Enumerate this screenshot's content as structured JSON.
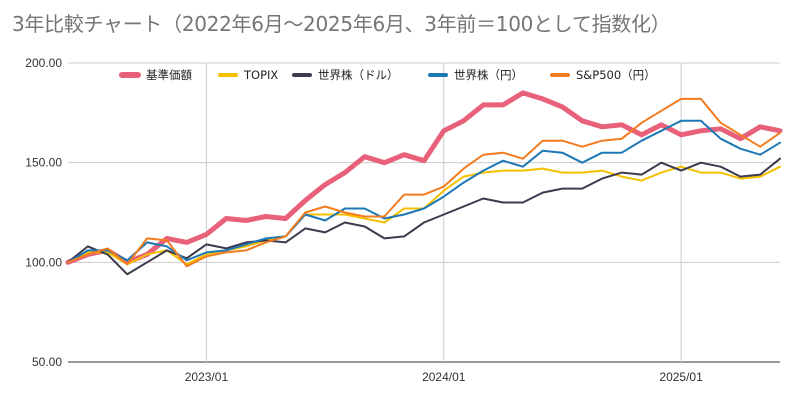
{
  "chart_data": {
    "type": "line",
    "title": "3年比較チャート（2022年6月～2025年6月、3年前＝100として指数化）",
    "xlabel": "",
    "ylabel": "",
    "ylim": [
      50,
      200
    ],
    "y_ticks": [
      "50.00",
      "100.00",
      "150.00",
      "200.00"
    ],
    "x_tick_labels": [
      "2023/01",
      "2024/01",
      "2025/01"
    ],
    "x": [
      "2022/06",
      "2022/07",
      "2022/08",
      "2022/09",
      "2022/10",
      "2022/11",
      "2022/12",
      "2023/01",
      "2023/02",
      "2023/03",
      "2023/04",
      "2023/05",
      "2023/06",
      "2023/07",
      "2023/08",
      "2023/09",
      "2023/10",
      "2023/11",
      "2023/12",
      "2024/01",
      "2024/02",
      "2024/03",
      "2024/04",
      "2024/05",
      "2024/06",
      "2024/07",
      "2024/08",
      "2024/09",
      "2024/10",
      "2024/11",
      "2024/12",
      "2025/01",
      "2025/02",
      "2025/03",
      "2025/04",
      "2025/05",
      "2025/06"
    ],
    "grid": true,
    "legend_position": "top",
    "series": [
      {
        "name": "基準価額",
        "color": "#e8607a",
        "width": 5,
        "values": [
          100,
          104,
          106,
          100,
          104,
          112,
          110,
          114,
          122,
          121,
          123,
          122,
          131,
          139,
          145,
          153,
          150,
          154,
          151,
          166,
          171,
          179,
          179,
          185,
          182,
          178,
          171,
          168,
          169,
          164,
          169,
          164,
          166,
          167,
          162,
          168,
          166
        ]
      },
      {
        "name": "TOPIX",
        "color": "#f5c000",
        "width": 2,
        "values": [
          100,
          105,
          105,
          99,
          104,
          106,
          99,
          104,
          106,
          108,
          111,
          113,
          124,
          124,
          124,
          122,
          120,
          127,
          127,
          136,
          143,
          145,
          146,
          146,
          147,
          145,
          145,
          146,
          143,
          141,
          145,
          148,
          145,
          145,
          142,
          143,
          148
        ]
      },
      {
        "name": "世界株（ドル）",
        "color": "#3d3a4e",
        "width": 2,
        "values": [
          100,
          108,
          104,
          94,
          100,
          106,
          102,
          109,
          107,
          110,
          111,
          110,
          117,
          115,
          120,
          118,
          112,
          113,
          120,
          124,
          128,
          132,
          130,
          130,
          135,
          137,
          137,
          142,
          145,
          144,
          150,
          146,
          150,
          148,
          143,
          144,
          152
        ]
      },
      {
        "name": "世界株（円）",
        "color": "#1e78b4",
        "width": 2,
        "values": [
          100,
          106,
          106,
          101,
          110,
          108,
          101,
          105,
          106,
          109,
          112,
          113,
          124,
          121,
          127,
          127,
          122,
          124,
          127,
          133,
          140,
          146,
          151,
          148,
          156,
          155,
          150,
          155,
          155,
          161,
          166,
          171,
          171,
          162,
          157,
          154,
          160
        ]
      },
      {
        "name": "S&P500（円）",
        "color": "#f47c20",
        "width": 2,
        "values": [
          100,
          104,
          107,
          99,
          112,
          111,
          98,
          103,
          105,
          106,
          110,
          113,
          125,
          128,
          125,
          123,
          123,
          134,
          134,
          138,
          147,
          154,
          155,
          152,
          161,
          161,
          158,
          161,
          162,
          170,
          176,
          182,
          182,
          170,
          164,
          158,
          165
        ]
      }
    ]
  }
}
